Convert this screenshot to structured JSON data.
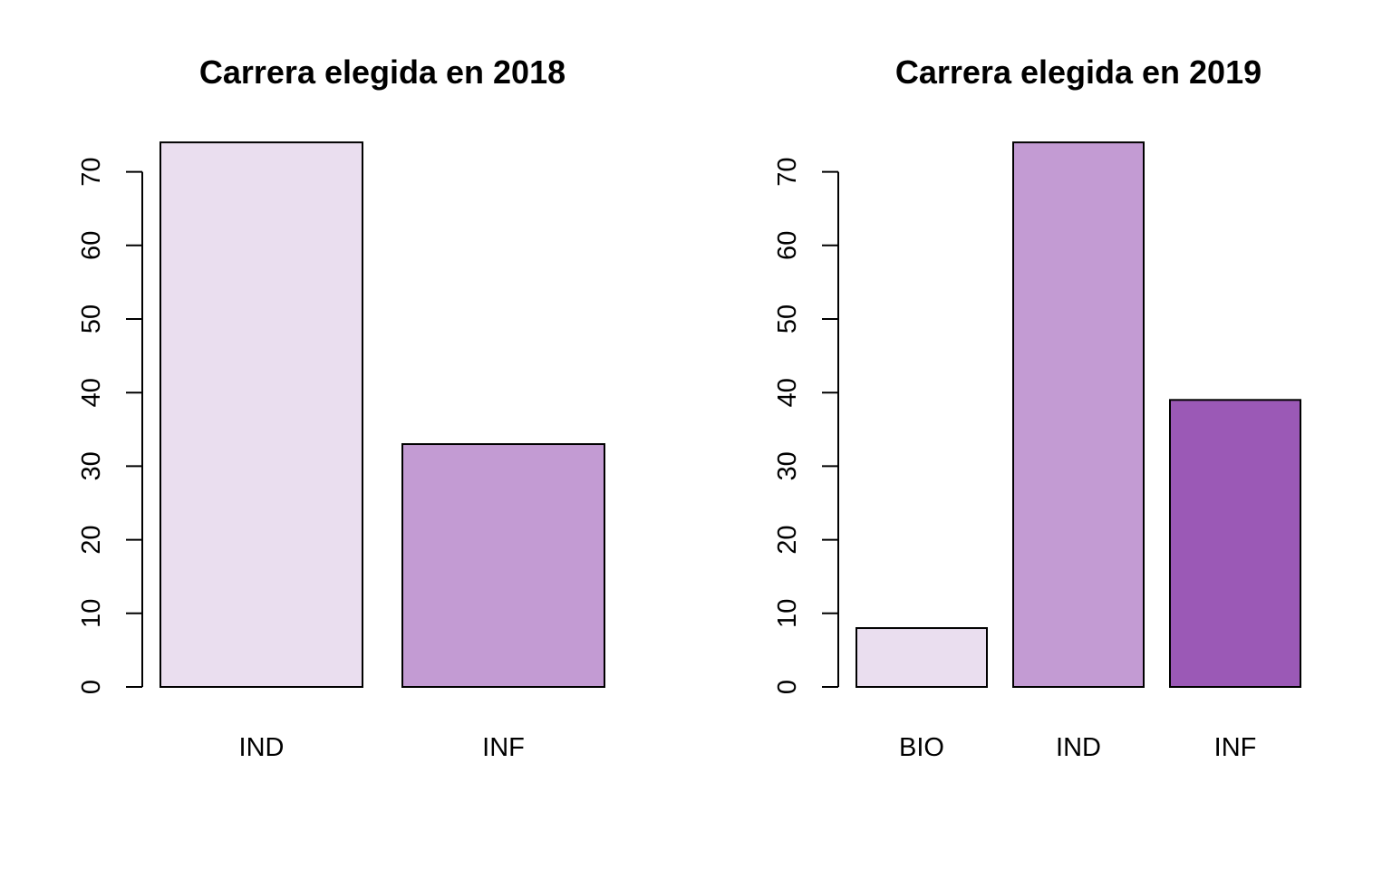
{
  "chart_data": [
    {
      "type": "bar",
      "title": "Carrera elegida en 2018",
      "xlabel": "",
      "ylabel": "",
      "categories": [
        "IND",
        "INF"
      ],
      "values": [
        74,
        33
      ],
      "colors": [
        "#EADEEF",
        "#C39BD3"
      ],
      "ylim": [
        0,
        74
      ],
      "yticks": [
        "0",
        "10",
        "20",
        "30",
        "40",
        "50",
        "60",
        "70"
      ],
      "grid": false
    },
    {
      "type": "bar",
      "title": "Carrera elegida en 2019",
      "xlabel": "",
      "ylabel": "",
      "categories": [
        "BIO",
        "IND",
        "INF"
      ],
      "values": [
        8,
        74,
        39
      ],
      "colors": [
        "#EADEEF",
        "#C39BD3",
        "#9B59B6"
      ],
      "ylim": [
        0,
        74
      ],
      "yticks": [
        "0",
        "10",
        "20",
        "30",
        "40",
        "50",
        "60",
        "70"
      ],
      "grid": false
    }
  ]
}
